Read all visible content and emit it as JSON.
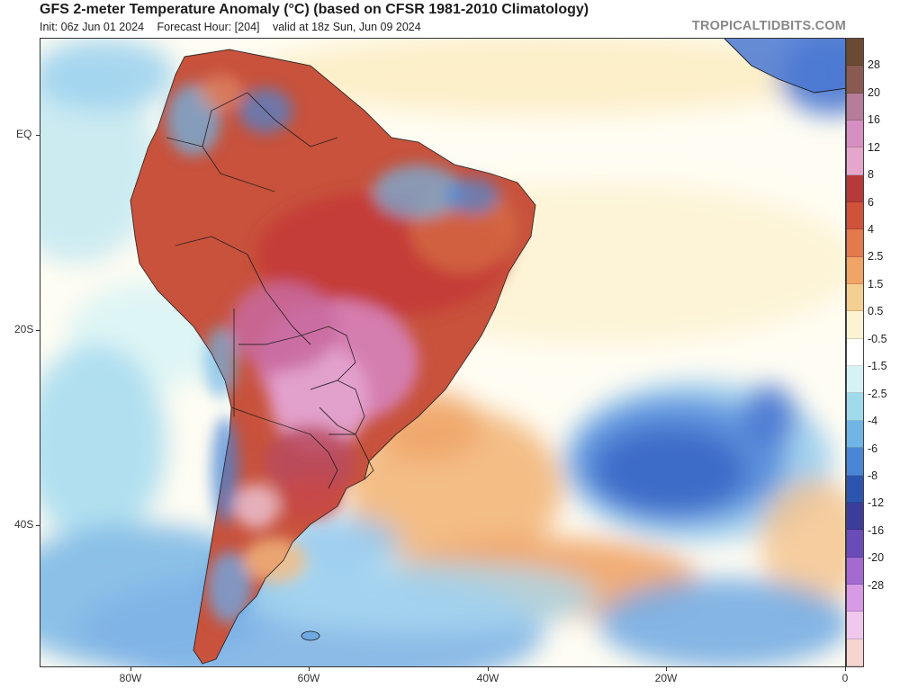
{
  "header": {
    "title": "GFS 2-meter Temperature Anomaly (°C) (based on CFSR 1981-2010 Climatology)",
    "init": "Init: 06z Jun 01 2024",
    "forecast_hour": "Forecast Hour: [204]",
    "valid": "valid at 18z Sun, Jun 09 2024",
    "credit": "TROPICALTIDBITS.COM"
  },
  "axes": {
    "latitude_labels": [
      "EQ",
      "20S",
      "40S"
    ],
    "longitude_labels": [
      "80W",
      "60W",
      "40W",
      "20W",
      "0"
    ]
  },
  "colorbar": {
    "labels": [
      "28",
      "20",
      "16",
      "12",
      "8",
      "6",
      "4",
      "2.5",
      "1.5",
      "0.5",
      "-0.5",
      "-1.5",
      "-2.5",
      "-4",
      "-6",
      "-8",
      "-12",
      "-16",
      "-20",
      "-28"
    ],
    "colors": [
      "#6b4a33",
      "#8a5a52",
      "#b57d9a",
      "#d58fc0",
      "#e6a6cc",
      "#b63a3a",
      "#d0523a",
      "#e27a4e",
      "#f0a466",
      "#f4cf92",
      "#fdf3d2",
      "#ffffff",
      "#d6f2f5",
      "#9fdbea",
      "#6fb6e6",
      "#4a86d6",
      "#2c55b0",
      "#3a3e9a",
      "#6a4cb8",
      "#a46ad2",
      "#d79ae4",
      "#f0c8ee",
      "#f6d5cf"
    ]
  }
}
